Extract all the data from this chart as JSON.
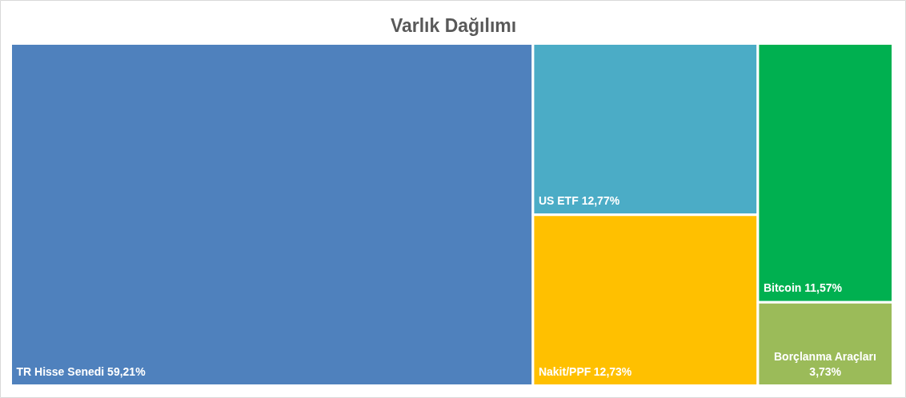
{
  "chart_data": {
    "type": "other",
    "title": "Varlık Dağılımı",
    "categories": [
      "TR Hisse Senedi",
      "US ETF",
      "Nakit/PPF",
      "Bitcoin",
      "Borçlanma Araçları"
    ],
    "values": [
      59.21,
      12.77,
      12.73,
      11.57,
      3.73
    ],
    "value_labels": [
      "59,21%",
      "12,77%",
      "12,73%",
      "11,57%",
      "3,73%"
    ],
    "colors": [
      "#4f81bd",
      "#4bacc6",
      "#ffc000",
      "#00b050",
      "#9bbb59"
    ]
  }
}
